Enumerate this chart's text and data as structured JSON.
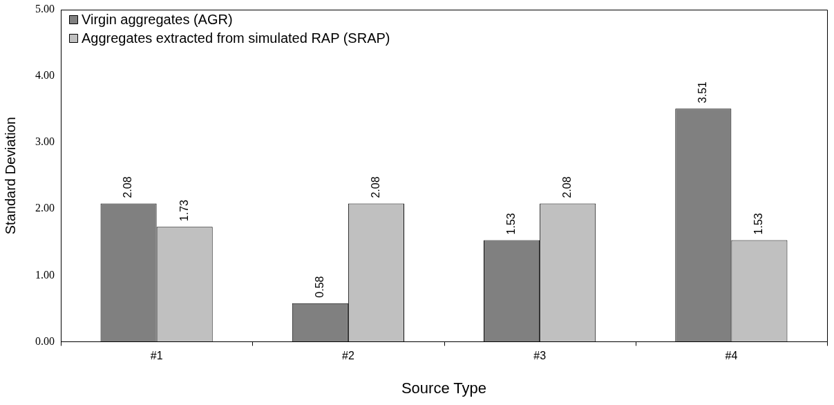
{
  "chart_data": {
    "type": "bar",
    "xlabel": "Source Type",
    "ylabel": "Standard Deviation",
    "categories": [
      "#1",
      "#2",
      "#3",
      "#4"
    ],
    "series": [
      {
        "name": "Virgin aggregates (AGR)",
        "color": "#808080",
        "values": [
          2.08,
          0.58,
          1.53,
          3.51
        ]
      },
      {
        "name": "Aggregates extracted from simulated RAP (SRAP)",
        "color": "#c0c0c0",
        "values": [
          1.73,
          2.08,
          2.08,
          1.53
        ]
      }
    ],
    "ylim": [
      0,
      5
    ],
    "yticks": [
      {
        "value": 0,
        "label": "0.00"
      },
      {
        "value": 1,
        "label": "1.00"
      },
      {
        "value": 2,
        "label": "2.00"
      },
      {
        "value": 3,
        "label": "3.00"
      },
      {
        "value": 4,
        "label": "4.00"
      },
      {
        "value": 5,
        "label": "5.00"
      }
    ],
    "data_labels": true,
    "grid": false,
    "legend": "top left"
  }
}
